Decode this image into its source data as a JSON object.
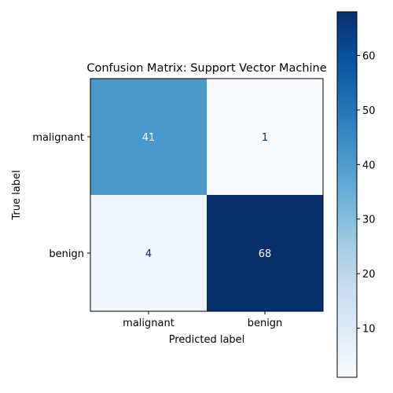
{
  "chart_data": {
    "type": "heatmap",
    "title": "Confusion Matrix: Support Vector Machine",
    "xlabel": "Predicted label",
    "ylabel": "True label",
    "x_categories": [
      "malignant",
      "benign"
    ],
    "y_categories": [
      "malignant",
      "benign"
    ],
    "values": [
      [
        41,
        1
      ],
      [
        4,
        68
      ]
    ],
    "colormap": "Blues",
    "colorbar": {
      "ticks": [
        "10",
        "20",
        "30",
        "40",
        "50",
        "60"
      ],
      "range": [
        1,
        68
      ]
    },
    "colors": {
      "low": "#f7fbff",
      "high": "#08306b"
    }
  }
}
